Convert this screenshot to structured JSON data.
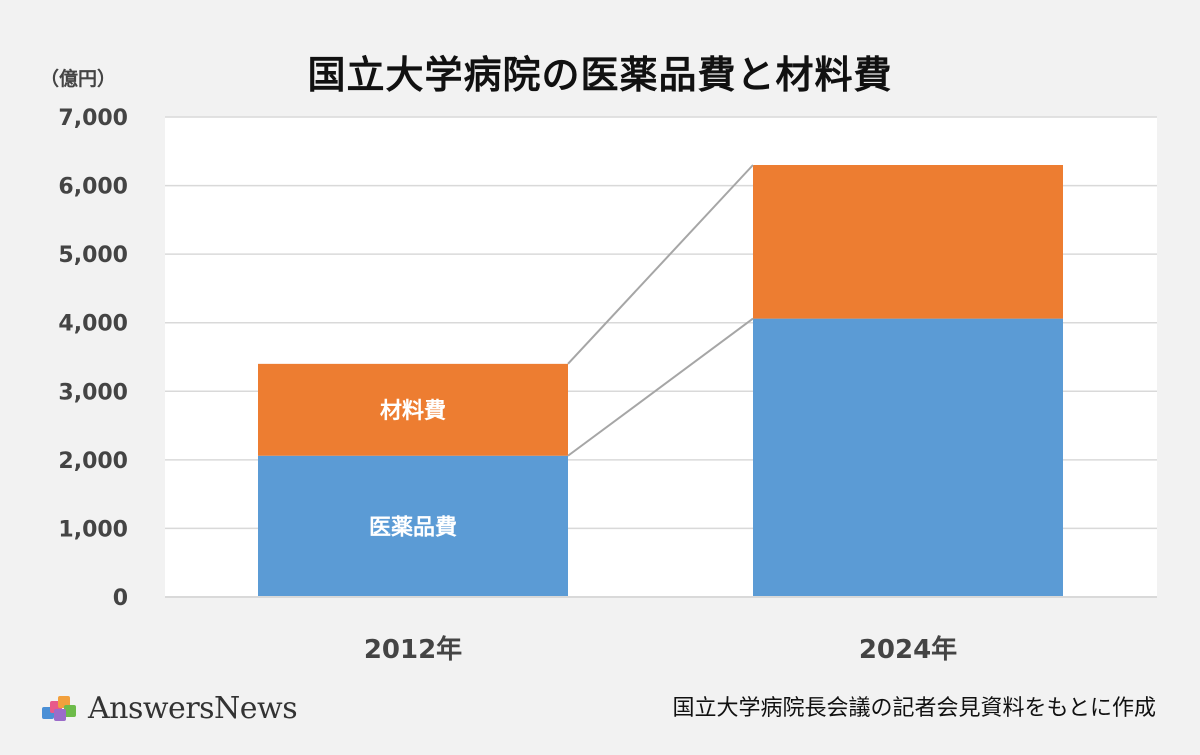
{
  "title": "国立大学病院の医薬品費と材料費",
  "unit_label": "（億円）",
  "source_note": "国立大学病院長会議の記者会見資料をもとに作成",
  "logo_text": "AnswersNews",
  "colors": {
    "background": "#f2f2f2",
    "plot_background": "#ffffff",
    "gridline": "#d9d9d9",
    "connector": "#a6a6a6",
    "drugs": "#5b9bd5",
    "materials": "#ed7d31"
  },
  "chart_data": {
    "type": "bar",
    "stacked": true,
    "categories": [
      "2012年",
      "2024年"
    ],
    "series": [
      {
        "name": "医薬品費",
        "values": [
          2060,
          4060
        ],
        "color": "#5b9bd5"
      },
      {
        "name": "材料費",
        "values": [
          1340,
          2240
        ],
        "color": "#ed7d31"
      }
    ],
    "ylim": [
      0,
      7000
    ],
    "yticks": [
      0,
      1000,
      2000,
      3000,
      4000,
      5000,
      6000,
      7000
    ],
    "ytick_labels": [
      "0",
      "1,000",
      "2,000",
      "3,000",
      "4,000",
      "5,000",
      "6,000",
      "7,000"
    ],
    "grid": true,
    "connector_lines": true,
    "segment_labels_on_category": "2012年"
  }
}
